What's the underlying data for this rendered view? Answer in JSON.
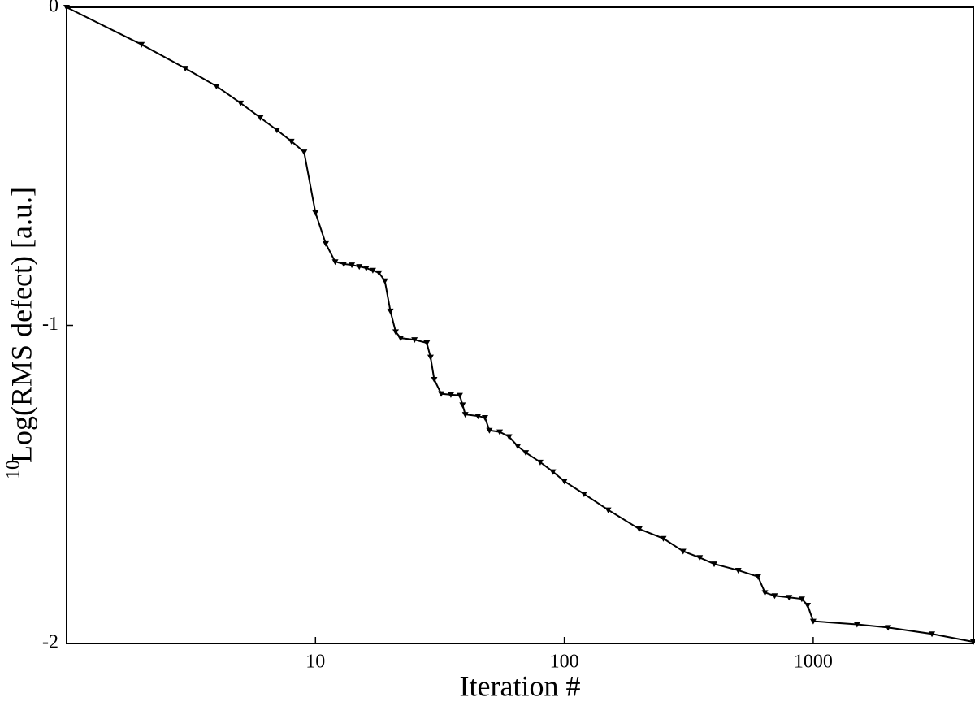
{
  "chart_data": {
    "type": "line",
    "xlabel": "Iteration #",
    "ylabel_superscript": "10",
    "ylabel": "Log(RMS defect) [a.u.]",
    "xscale": "log",
    "xlim": [
      1,
      4400
    ],
    "xticks": [
      10,
      100,
      1000
    ],
    "ylim": [
      -2,
      0
    ],
    "yticks": [
      0,
      -1,
      -2
    ],
    "grid": false,
    "series": [
      {
        "name": "RMS defect",
        "color": "#000000",
        "marker": "triangle-down",
        "x": [
          1,
          2,
          3,
          4,
          5,
          6,
          7,
          8,
          9,
          10,
          11,
          12,
          13,
          14,
          15,
          16,
          17,
          18,
          19,
          20,
          21,
          22,
          25,
          28,
          29,
          30,
          32,
          35,
          38,
          39,
          40,
          45,
          48,
          50,
          55,
          60,
          65,
          70,
          80,
          90,
          100,
          120,
          150,
          200,
          250,
          300,
          350,
          400,
          500,
          600,
          640,
          700,
          800,
          900,
          950,
          1000,
          1500,
          2000,
          3000,
          4400
        ],
        "values": [
          0,
          -0.117,
          -0.192,
          -0.248,
          -0.301,
          -0.347,
          -0.386,
          -0.421,
          -0.455,
          -0.646,
          -0.743,
          -0.8,
          -0.807,
          -0.81,
          -0.815,
          -0.82,
          -0.827,
          -0.835,
          -0.86,
          -0.955,
          -1.02,
          -1.04,
          -1.045,
          -1.055,
          -1.1,
          -1.17,
          -1.215,
          -1.218,
          -1.22,
          -1.25,
          -1.28,
          -1.285,
          -1.29,
          -1.33,
          -1.335,
          -1.35,
          -1.38,
          -1.4,
          -1.43,
          -1.46,
          -1.49,
          -1.53,
          -1.58,
          -1.64,
          -1.67,
          -1.71,
          -1.73,
          -1.75,
          -1.77,
          -1.79,
          -1.84,
          -1.85,
          -1.855,
          -1.86,
          -1.88,
          -1.93,
          -1.94,
          -1.95,
          -1.97,
          -1.995
        ]
      }
    ]
  }
}
